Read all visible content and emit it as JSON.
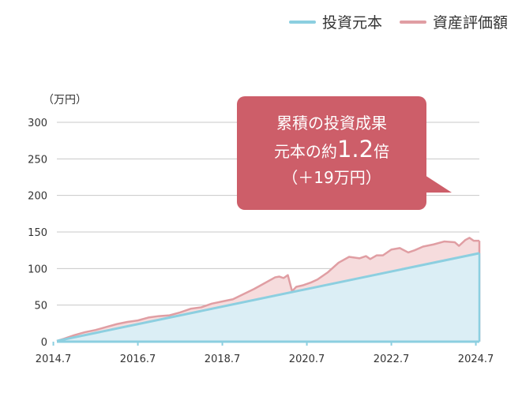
{
  "legend": [
    {
      "label": "投資元本",
      "color": "#8ccfe0"
    },
    {
      "label": "資産評価額",
      "color": "#e09ea3"
    }
  ],
  "unit_label": "（万円）",
  "callout": {
    "line1": "累積の投資成果",
    "line2_prefix": "元本の約",
    "line2_value": "1.2",
    "line2_suffix": "倍",
    "line3": "（＋19万円）",
    "color": "#cd5e69"
  },
  "chart_data": {
    "type": "area",
    "x_unit": "year",
    "x_ticks": [
      "2014.7",
      "2016.7",
      "2018.7",
      "2020.7",
      "2022.7",
      "2024.7"
    ],
    "y_ticks": [
      "0",
      "50",
      "100",
      "150",
      "200",
      "250",
      "300"
    ],
    "xlim": [
      2014.583,
      2024.583
    ],
    "ylim": [
      0,
      300
    ],
    "grid": true,
    "legend_position": "top-right",
    "series": [
      {
        "name": "投資元本",
        "color": "#8ccfe0",
        "fill": "#dbeef5",
        "x": [
          2014.583,
          2024.583
        ],
        "y": [
          1,
          121
        ]
      },
      {
        "name": "資産評価額",
        "color": "#e09ea3",
        "fill": "#f6dcdd",
        "x": [
          2014.583,
          2014.75,
          2015.0,
          2015.25,
          2015.5,
          2015.75,
          2016.0,
          2016.25,
          2016.5,
          2016.75,
          2017.0,
          2017.25,
          2017.5,
          2017.75,
          2018.0,
          2018.25,
          2018.5,
          2018.75,
          2019.0,
          2019.25,
          2019.5,
          2019.75,
          2019.85,
          2019.95,
          2020.05,
          2020.15,
          2020.25,
          2020.4,
          2020.6,
          2020.75,
          2021.0,
          2021.25,
          2021.5,
          2021.75,
          2021.9,
          2022.0,
          2022.15,
          2022.3,
          2022.5,
          2022.7,
          2022.9,
          2023.05,
          2023.25,
          2023.5,
          2023.75,
          2024.0,
          2024.1,
          2024.25,
          2024.35,
          2024.45,
          2024.583
        ],
        "y": [
          1,
          4,
          9,
          13,
          16,
          20,
          24,
          27,
          29,
          33,
          35,
          36,
          40,
          45,
          47,
          52,
          55,
          58,
          65,
          72,
          80,
          88,
          89,
          87,
          91,
          69,
          75,
          77,
          81,
          85,
          95,
          108,
          116,
          114,
          117,
          113,
          118,
          118,
          126,
          128,
          122,
          125,
          130,
          133,
          137,
          136,
          131,
          139,
          142,
          138,
          138
        ]
      }
    ]
  }
}
